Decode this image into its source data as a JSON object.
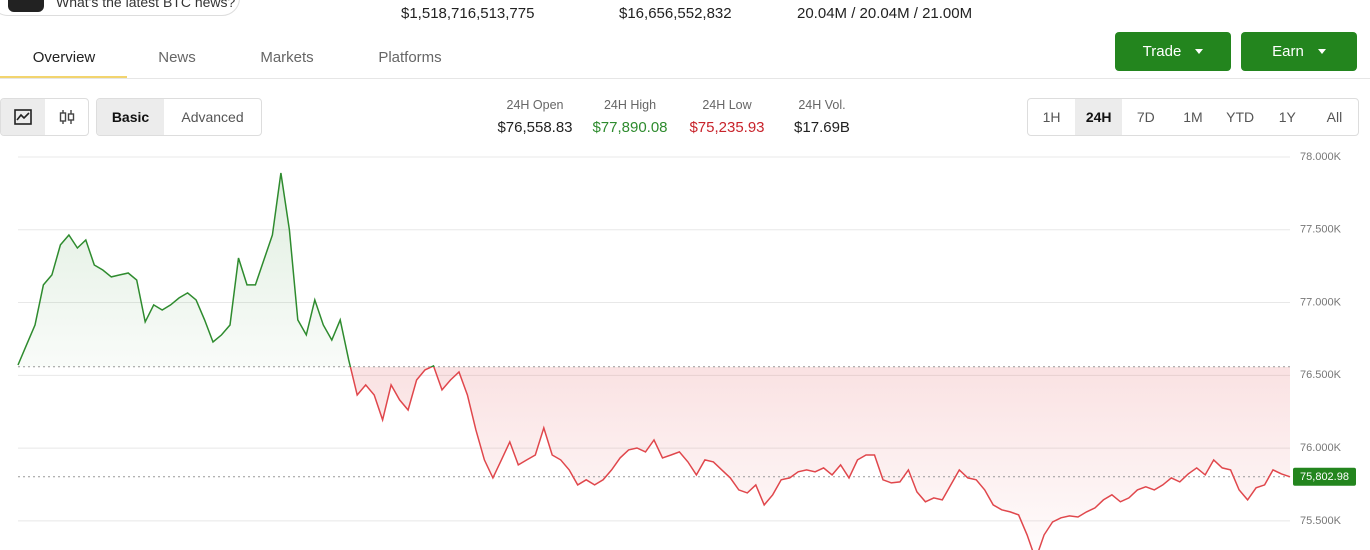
{
  "news_prompt": "What's the latest BTC news?",
  "top_stats": [
    "$1,518,716,513,775",
    "$16,656,552,832",
    "20.04M / 20.04M / 21.00M"
  ],
  "tabs": [
    "Overview",
    "News",
    "Markets",
    "Platforms"
  ],
  "buttons": [
    "Trade",
    "Earn"
  ],
  "view_modes": [
    "Basic",
    "Advanced"
  ],
  "stats": [
    {
      "label": "24H Open",
      "value": "$76,558.83"
    },
    {
      "label": "24H High",
      "value": "$77,890.08"
    },
    {
      "label": "24H Low",
      "value": "$75,235.93"
    },
    {
      "label": "24H Vol.",
      "value": "$17.69B"
    }
  ],
  "ranges": [
    "1H",
    "24H",
    "7D",
    "1M",
    "YTD",
    "1Y",
    "All"
  ],
  "chart_data": {
    "type": "line",
    "ylim": [
      75300,
      78000
    ],
    "yticks": [
      {
        "value": 75500,
        "label": "75.500K"
      },
      {
        "value": 76000,
        "label": "76.000K"
      },
      {
        "value": 76500,
        "label": "76.500K"
      },
      {
        "value": 77000,
        "label": "77.000K"
      },
      {
        "value": 77500,
        "label": "77.500K"
      },
      {
        "value": 78000,
        "label": "78.000K"
      }
    ],
    "grid": true,
    "open_value": 76558.83,
    "current": {
      "value": 75802.98,
      "label": "75,802.98"
    },
    "up_color": "#2e8b2e",
    "down_color": "#e0474c",
    "values": [
      76571,
      76709,
      76846,
      77121,
      77190,
      77396,
      77464,
      77375,
      77430,
      77258,
      77224,
      77176,
      77190,
      77203,
      77155,
      76867,
      76984,
      76949,
      76984,
      77032,
      77066,
      77018,
      76881,
      76729,
      76778,
      76846,
      77306,
      77121,
      77121,
      77293,
      77464,
      77890,
      77499,
      76881,
      76778,
      77018,
      76846,
      76743,
      76881,
      76606,
      76365,
      76434,
      76365,
      76194,
      76434,
      76331,
      76262,
      76468,
      76537,
      76565,
      76400,
      76468,
      76523,
      76365,
      76125,
      75919,
      75795,
      75919,
      76043,
      75885,
      75919,
      75953,
      76139,
      75953,
      75919,
      75850,
      75747,
      75782,
      75747,
      75782,
      75850,
      75933,
      75988,
      76001,
      75974,
      76056,
      75933,
      75953,
      75974,
      75905,
      75816,
      75919,
      75905,
      75850,
      75795,
      75713,
      75692,
      75747,
      75610,
      75679,
      75782,
      75795,
      75837,
      75850,
      75837,
      75864,
      75816,
      75885,
      75795,
      75919,
      75953,
      75953,
      75782,
      75761,
      75768,
      75850,
      75699,
      75631,
      75658,
      75644,
      75747,
      75850,
      75795,
      75782,
      75713,
      75610,
      75576,
      75562,
      75541,
      75404,
      75236,
      75404,
      75493,
      75521,
      75534,
      75527,
      75562,
      75589,
      75644,
      75679,
      75631,
      75658,
      75713,
      75734,
      75713,
      75747,
      75795,
      75768,
      75823,
      75864,
      75816,
      75919,
      75864,
      75850,
      75713,
      75644,
      75727,
      75747,
      75850,
      75823,
      75802.98
    ]
  }
}
